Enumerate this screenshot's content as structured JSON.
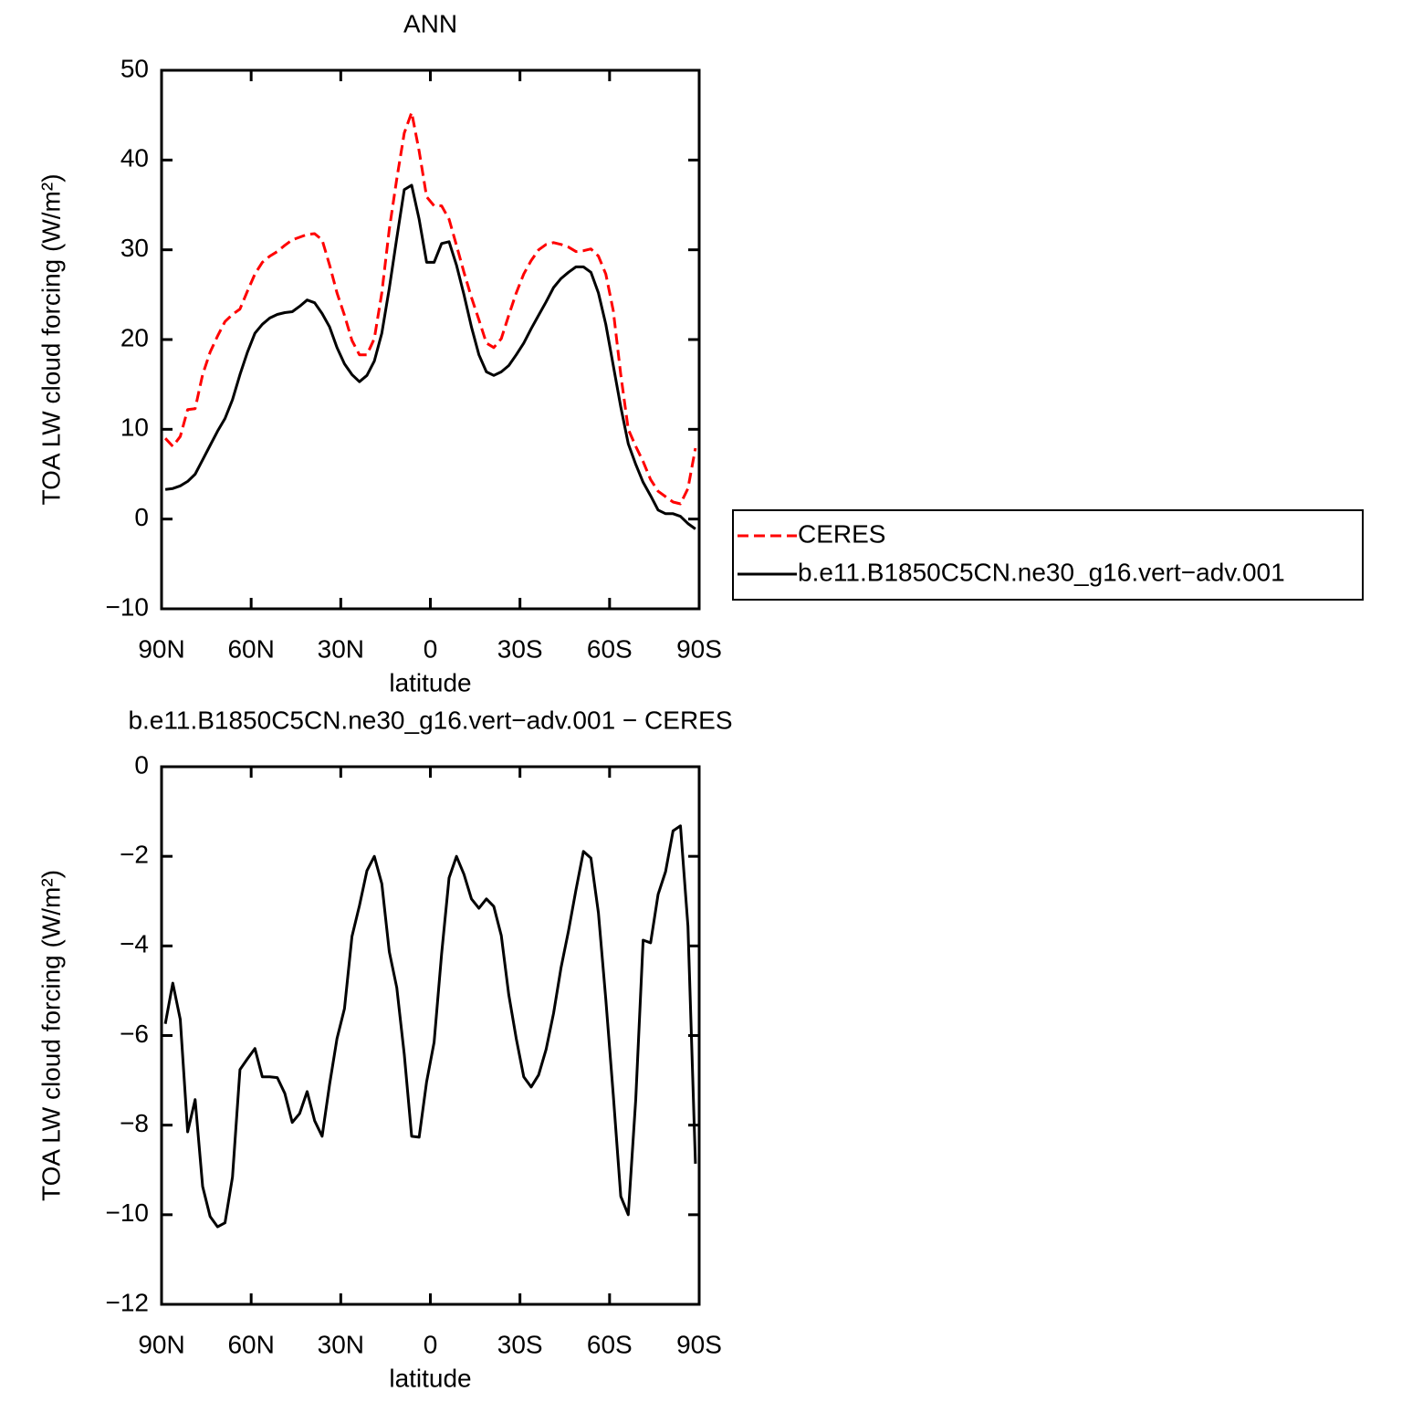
{
  "chart_data": [
    {
      "type": "line",
      "title": "ANN",
      "x_label": "latitude",
      "y_label": "TOA LW cloud forcing (W/m²)",
      "x": [
        88.75,
        86.25,
        83.75,
        81.25,
        78.75,
        76.25,
        73.75,
        71.25,
        68.75,
        66.25,
        63.75,
        61.25,
        58.75,
        56.25,
        53.75,
        51.25,
        48.75,
        46.25,
        43.75,
        41.25,
        38.75,
        36.25,
        33.75,
        31.25,
        28.75,
        26.25,
        23.75,
        21.25,
        18.75,
        16.25,
        13.75,
        11.25,
        8.75,
        6.25,
        3.75,
        1.25,
        -1.25,
        -3.75,
        -6.25,
        -8.75,
        -11.25,
        -13.75,
        -16.25,
        -18.75,
        -21.25,
        -23.75,
        -26.25,
        -28.75,
        -31.25,
        -33.75,
        -36.25,
        -38.75,
        -41.25,
        -43.75,
        -46.25,
        -48.75,
        -51.25,
        -53.75,
        -56.25,
        -58.75,
        -61.25,
        -63.75,
        -66.25,
        -68.75,
        -71.25,
        -73.75,
        -76.25,
        -78.75,
        -81.25,
        -83.75,
        -86.25,
        -88.75
      ],
      "xlim": [
        90,
        -90
      ],
      "xticks": [
        {
          "value": 90,
          "label": "90N"
        },
        {
          "value": 60,
          "label": "60N"
        },
        {
          "value": 30,
          "label": "30N"
        },
        0,
        {
          "value": -30,
          "label": "30S"
        },
        {
          "value": -60,
          "label": "60S"
        },
        {
          "value": -90,
          "label": "90S"
        }
      ],
      "ylim": [
        -10,
        50
      ],
      "yticks": [
        {
          "value": -10,
          "label": "−10"
        },
        0,
        10,
        20,
        30,
        40,
        50
      ],
      "legend": "right",
      "series": [
        {
          "name": "CERES",
          "color": "#ff0000",
          "dash": true,
          "values": [
            9.0,
            8.1,
            9.2,
            12.2,
            12.3,
            16.1,
            18.6,
            20.4,
            22.0,
            22.8,
            23.4,
            25.4,
            27.3,
            28.6,
            29.3,
            29.8,
            30.5,
            31.1,
            31.4,
            31.7,
            31.8,
            31.1,
            28.3,
            25.2,
            22.7,
            19.9,
            18.3,
            18.3,
            20.1,
            25.2,
            32.3,
            37.9,
            43.0,
            45.3,
            41.0,
            35.9,
            34.9,
            34.9,
            33.4,
            30.5,
            27.5,
            24.7,
            22.2,
            19.6,
            19.1,
            20.1,
            22.7,
            25.2,
            27.3,
            28.8,
            30.0,
            30.6,
            30.8,
            30.6,
            30.3,
            29.8,
            29.9,
            30.1,
            29.3,
            27.3,
            23.2,
            16.1,
            10.0,
            8.1,
            6.4,
            4.4,
            3.1,
            2.5,
            1.9,
            1.7,
            3.4,
            7.9
          ]
        },
        {
          "name": "b.e11.B1850C5CN.ne30_g16.vert−adv.001",
          "color": "#000000",
          "dash": false,
          "values": [
            3.3,
            3.4,
            3.7,
            4.2,
            5.0,
            6.6,
            8.2,
            9.8,
            11.2,
            13.3,
            16.1,
            18.6,
            20.7,
            21.7,
            22.4,
            22.8,
            23.0,
            23.1,
            23.7,
            24.4,
            24.1,
            22.9,
            21.4,
            19.1,
            17.3,
            16.1,
            15.3,
            16.0,
            17.6,
            20.7,
            25.7,
            31.3,
            36.7,
            37.2,
            33.4,
            28.6,
            28.6,
            30.7,
            30.9,
            28.3,
            25.0,
            21.4,
            18.3,
            16.4,
            16.0,
            16.4,
            17.1,
            18.3,
            19.6,
            21.2,
            22.7,
            24.2,
            25.8,
            26.8,
            27.5,
            28.1,
            28.1,
            27.5,
            25.2,
            21.7,
            17.1,
            12.5,
            8.4,
            6.1,
            4.1,
            2.6,
            1.0,
            0.6,
            0.6,
            0.3,
            -0.5,
            -1.1
          ]
        }
      ]
    },
    {
      "type": "line",
      "title": "b.e11.B1850C5CN.ne30_g16.vert−adv.001 − CERES",
      "x_label": "latitude",
      "y_label": "TOA LW cloud forcing (W/m²)",
      "x": [
        88.75,
        86.25,
        83.75,
        81.25,
        78.75,
        76.25,
        73.75,
        71.25,
        68.75,
        66.25,
        63.75,
        61.25,
        58.75,
        56.25,
        53.75,
        51.25,
        48.75,
        46.25,
        43.75,
        41.25,
        38.75,
        36.25,
        33.75,
        31.25,
        28.75,
        26.25,
        23.75,
        21.25,
        18.75,
        16.25,
        13.75,
        11.25,
        8.75,
        6.25,
        3.75,
        1.25,
        -1.25,
        -3.75,
        -6.25,
        -8.75,
        -11.25,
        -13.75,
        -16.25,
        -18.75,
        -21.25,
        -23.75,
        -26.25,
        -28.75,
        -31.25,
        -33.75,
        -36.25,
        -38.75,
        -41.25,
        -43.75,
        -46.25,
        -48.75,
        -51.25,
        -53.75,
        -56.25,
        -58.75,
        -61.25,
        -63.75,
        -66.25,
        -68.75,
        -71.25,
        -73.75,
        -76.25,
        -78.75,
        -81.25,
        -83.75,
        -86.25,
        -88.75
      ],
      "xlim": [
        90,
        -90
      ],
      "xticks": [
        {
          "value": 90,
          "label": "90N"
        },
        {
          "value": 60,
          "label": "60N"
        },
        {
          "value": 30,
          "label": "30N"
        },
        0,
        {
          "value": -30,
          "label": "30S"
        },
        {
          "value": -60,
          "label": "60S"
        },
        {
          "value": -90,
          "label": "90S"
        }
      ],
      "ylim": [
        -12,
        0
      ],
      "yticks": [
        {
          "value": -12,
          "label": "−12"
        },
        {
          "value": -10,
          "label": "−10"
        },
        {
          "value": -8,
          "label": "−8"
        },
        {
          "value": -6,
          "label": "−6"
        },
        {
          "value": -4,
          "label": "−4"
        },
        {
          "value": -2,
          "label": "−2"
        },
        0
      ],
      "color": "#000000",
      "values": [
        -5.74,
        -4.83,
        -5.64,
        -8.15,
        -7.43,
        -9.37,
        -10.04,
        -10.27,
        -10.18,
        -9.16,
        -6.76,
        -6.52,
        -6.29,
        -6.92,
        -6.92,
        -6.94,
        -7.29,
        -7.94,
        -7.74,
        -7.25,
        -7.9,
        -8.25,
        -7.09,
        -6.07,
        -5.4,
        -3.79,
        -3.1,
        -2.32,
        -2.0,
        -2.61,
        -4.13,
        -4.93,
        -6.42,
        -8.25,
        -8.27,
        -7.03,
        -6.15,
        -4.18,
        -2.48,
        -2.0,
        -2.4,
        -2.95,
        -3.16,
        -2.95,
        -3.12,
        -3.77,
        -5.09,
        -6.07,
        -6.92,
        -7.15,
        -6.88,
        -6.31,
        -5.5,
        -4.48,
        -3.67,
        -2.75,
        -1.89,
        -2.04,
        -3.26,
        -5.19,
        -7.33,
        -9.59,
        -10.0,
        -7.43,
        -3.87,
        -3.93,
        -2.85,
        -2.34,
        -1.43,
        -1.32,
        -3.56,
        -8.86
      ]
    }
  ]
}
